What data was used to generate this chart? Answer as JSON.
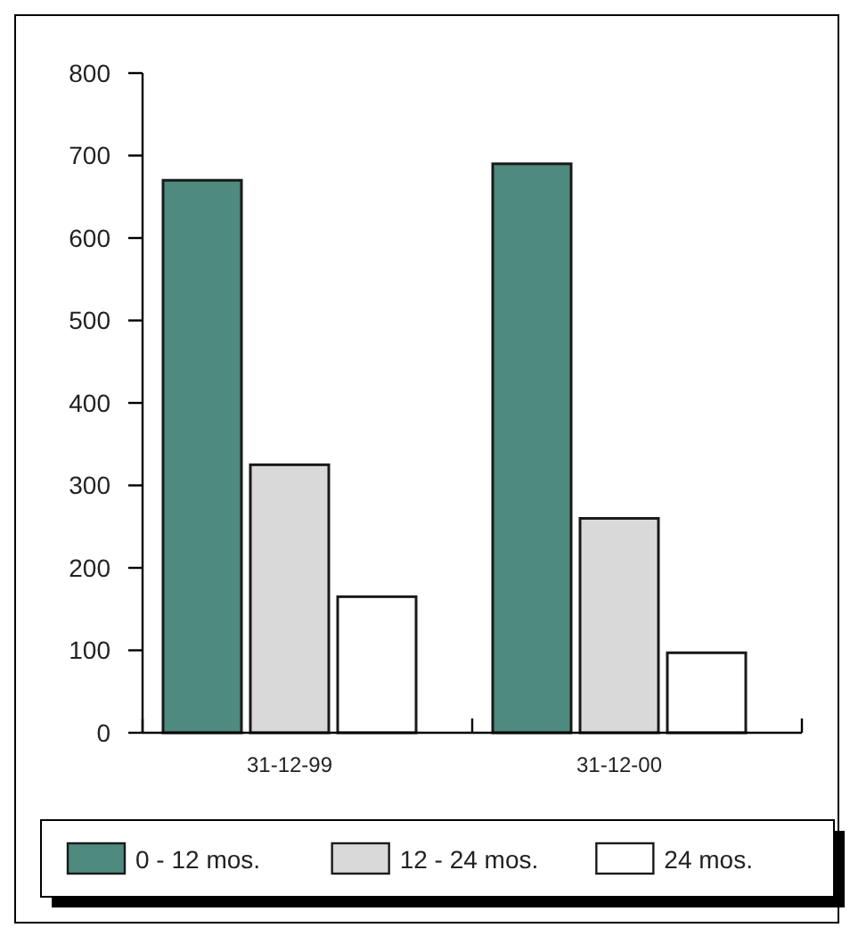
{
  "chart_data": {
    "type": "bar",
    "categories": [
      "31-12-99",
      "31-12-00"
    ],
    "series": [
      {
        "name": "0 - 12 mos.",
        "color": "#4e8a7e",
        "values": [
          670,
          690
        ]
      },
      {
        "name": "12 - 24 mos.",
        "color": "#d9d9d9",
        "values": [
          325,
          260
        ]
      },
      {
        "name": "24 mos.",
        "color": "#ffffff",
        "values": [
          165,
          97
        ]
      }
    ],
    "ylim": [
      0,
      800
    ],
    "yticks": [
      0,
      100,
      200,
      300,
      400,
      500,
      600,
      700,
      800
    ],
    "legend": "bottom"
  }
}
